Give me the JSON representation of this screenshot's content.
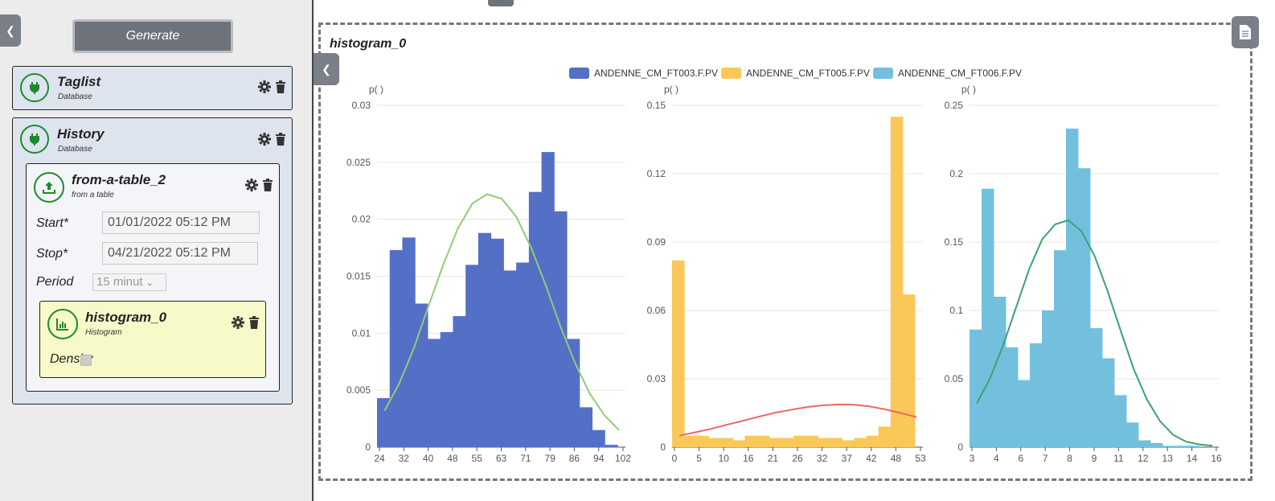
{
  "sidebar": {
    "generate_label": "Generate",
    "nodes": {
      "taglist": {
        "title": "Taglist",
        "subtitle": "Database"
      },
      "history": {
        "title": "History",
        "subtitle": "Database"
      },
      "from_table": {
        "title": "from-a-table_2",
        "subtitle": "from a table",
        "start_label": "Start*",
        "start_value": "01/01/2022 05:12 PM",
        "stop_label": "Stop*",
        "stop_value": "04/21/2022 05:12 PM",
        "period_label": "Period",
        "period_value": "15 minut"
      },
      "histogram": {
        "title": "histogram_0",
        "subtitle": "Histogram",
        "density_label": "Density",
        "density_checked": true
      }
    },
    "icons": [
      "plug-icon",
      "upload-icon",
      "chart-icon",
      "gear-icon",
      "trash-icon",
      "chevron-left-icon",
      "document-icon"
    ]
  },
  "panel": {
    "title": "histogram_0",
    "legend": [
      {
        "name": "ANDENNE_CM_FT003.F.PV",
        "color": "#5470c6"
      },
      {
        "name": "ANDENNE_CM_FT005.F.PV",
        "color": "#fac858"
      },
      {
        "name": "ANDENNE_CM_FT006.F.PV",
        "color": "#73c0de"
      }
    ]
  },
  "chart_data": [
    {
      "type": "bar",
      "ylabel": "p( )",
      "ylim": [
        0,
        0.03
      ],
      "yticks": [
        "0",
        "0.005",
        "0.01",
        "0.015",
        "0.02",
        "0.025",
        "0.03"
      ],
      "xticks": [
        "24",
        "32",
        "40",
        "48",
        "55",
        "63",
        "71",
        "79",
        "86",
        "94",
        "102"
      ],
      "series": [
        {
          "name": "ANDENNE_CM_FT003.F.PV",
          "color": "#5470c6",
          "values": [
            0.0043,
            0.0173,
            0.0184,
            0.0126,
            0.0095,
            0.0101,
            0.0115,
            0.016,
            0.0188,
            0.0183,
            0.0155,
            0.0162,
            0.0224,
            0.0259,
            0.0207,
            0.0095,
            0.0035,
            0.0015,
            0.0002
          ]
        },
        {
          "name": "",
          "type": "line",
          "color": "#91cc75",
          "values": [
            0.0032,
            0.0056,
            0.0087,
            0.0124,
            0.016,
            0.0192,
            0.0214,
            0.0222,
            0.0218,
            0.0202,
            0.0175,
            0.0142,
            0.0106,
            0.0074,
            0.0047,
            0.0028,
            0.0015
          ]
        }
      ]
    },
    {
      "type": "bar",
      "ylabel": "p( )",
      "ylim": [
        0,
        0.15
      ],
      "yticks": [
        "0",
        "0.03",
        "0.06",
        "0.09",
        "0.12",
        "0.15"
      ],
      "xticks": [
        "0",
        "5",
        "10",
        "16",
        "21",
        "26",
        "32",
        "37",
        "42",
        "48",
        "53"
      ],
      "series": [
        {
          "name": "ANDENNE_CM_FT005.F.PV",
          "color": "#fac858",
          "values": [
            0.082,
            0.005,
            0.005,
            0.004,
            0.004,
            0.003,
            0.005,
            0.005,
            0.004,
            0.004,
            0.005,
            0.005,
            0.004,
            0.004,
            0.003,
            0.004,
            0.005,
            0.009,
            0.145,
            0.067
          ]
        },
        {
          "name": "",
          "type": "line",
          "color": "#ee6666",
          "values": [
            0.005,
            0.0065,
            0.008,
            0.0098,
            0.0115,
            0.0133,
            0.015,
            0.0163,
            0.0175,
            0.0183,
            0.0187,
            0.0186,
            0.0179,
            0.0166,
            0.015,
            0.0132
          ]
        }
      ]
    },
    {
      "type": "bar",
      "ylabel": "p( )",
      "ylim": [
        0,
        0.25
      ],
      "yticks": [
        "0",
        "0.05",
        "0.1",
        "0.15",
        "0.2",
        "0.25"
      ],
      "xticks": [
        "3",
        "4",
        "6",
        "7",
        "8",
        "9",
        "11",
        "12",
        "13",
        "14",
        "16"
      ],
      "series": [
        {
          "name": "ANDENNE_CM_FT006.F.PV",
          "color": "#73c0de",
          "values": [
            0.086,
            0.189,
            0.11,
            0.073,
            0.049,
            0.076,
            0.1,
            0.144,
            0.233,
            0.204,
            0.087,
            0.065,
            0.038,
            0.018,
            0.005,
            0.003,
            0.001,
            0.001,
            0.001,
            0.0
          ]
        },
        {
          "name": "",
          "type": "line",
          "color": "#3ba272",
          "values": [
            0.032,
            0.05,
            0.074,
            0.102,
            0.13,
            0.152,
            0.163,
            0.166,
            0.158,
            0.14,
            0.114,
            0.085,
            0.057,
            0.035,
            0.019,
            0.009,
            0.004,
            0.002,
            0.001
          ]
        }
      ]
    }
  ]
}
